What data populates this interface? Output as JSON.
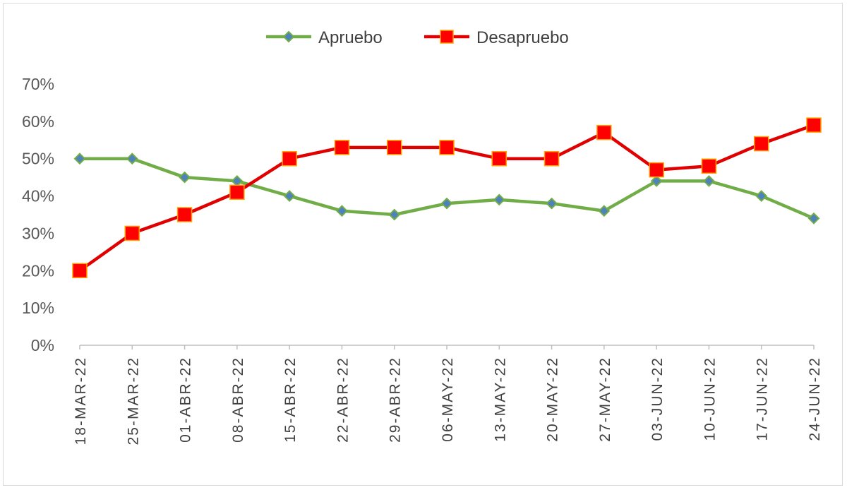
{
  "chart_data": {
    "type": "line",
    "categories": [
      "18-MAR-22",
      "25-MAR-22",
      "01-ABR-22",
      "08-ABR-22",
      "15-ABR-22",
      "22-ABR-22",
      "29-ABR-22",
      "06-MAY-22",
      "13-MAY-22",
      "20-MAY-22",
      "27-MAY-22",
      "03-JUN-22",
      "10-JUN-22",
      "17-JUN-22",
      "24-JUN-22"
    ],
    "series": [
      {
        "name": "Apruebo",
        "values": [
          50,
          50,
          45,
          44,
          40,
          36,
          35,
          38,
          39,
          38,
          36,
          44,
          44,
          40,
          34
        ],
        "color": "#70ad47",
        "marker": "diamond",
        "marker_color": "#4f81bd"
      },
      {
        "name": "Desapruebo",
        "values": [
          20,
          30,
          35,
          41,
          50,
          53,
          53,
          53,
          50,
          50,
          57,
          47,
          48,
          54,
          59
        ],
        "color": "#e00000",
        "marker": "square",
        "marker_color": "#ff0000"
      }
    ],
    "ylim": [
      0,
      70
    ],
    "yticks": [
      "0%",
      "10%",
      "20%",
      "30%",
      "40%",
      "50%",
      "60%",
      "70%"
    ],
    "legend_position": "top",
    "grid": false,
    "title": "",
    "xlabel": "",
    "ylabel": ""
  }
}
